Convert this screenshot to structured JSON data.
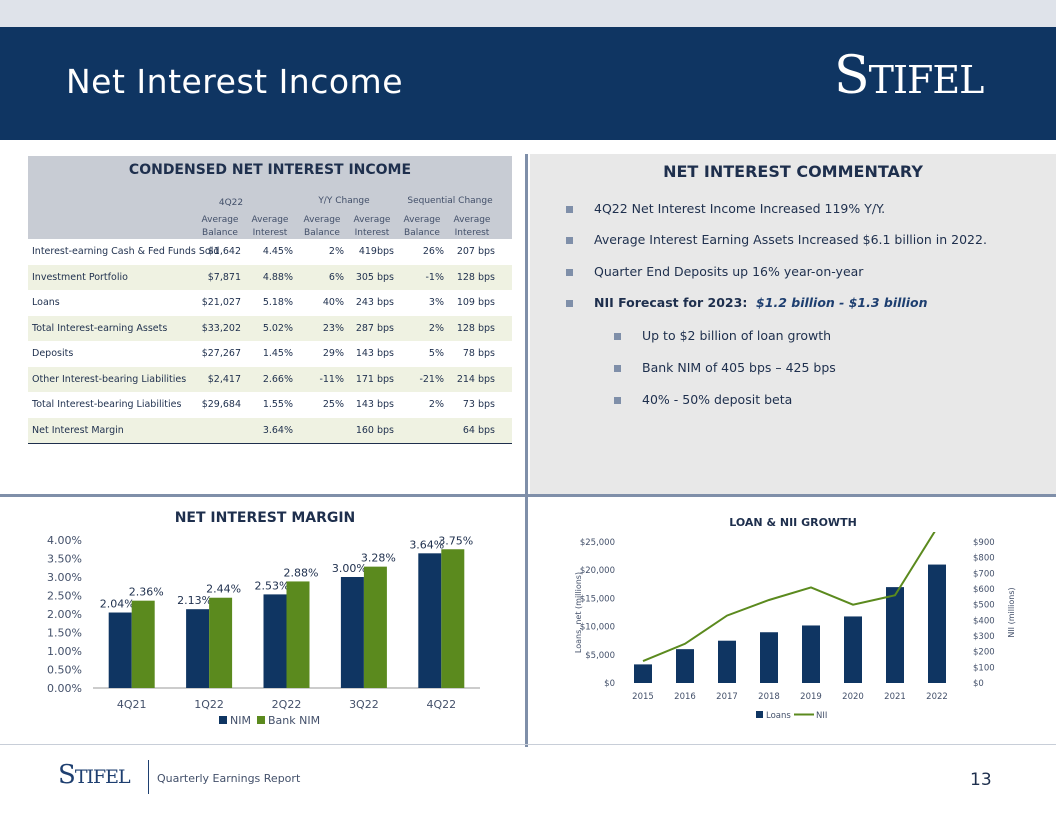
{
  "header": {
    "title": "Net Interest Income",
    "logo_text": "Stifel"
  },
  "table": {
    "title": "CONDENSED NET INTEREST INCOME",
    "groups": [
      "4Q22",
      "Y/Y Change",
      "Sequential Change"
    ],
    "col_headers": [
      "Average Balance",
      "Average Interest",
      "Average Balance",
      "Average Interest",
      "Average Balance",
      "Average Interest"
    ],
    "rows": [
      {
        "label": "Interest-earning Cash & Fed Funds Sold",
        "cells": [
          "$1,642",
          "4.45%",
          "2%",
          "419bps",
          "26%",
          "207 bps"
        ]
      },
      {
        "label": "Investment Portfolio",
        "cells": [
          "$7,871",
          "4.88%",
          "6%",
          "305 bps",
          "-1%",
          "128 bps"
        ]
      },
      {
        "label": "Loans",
        "cells": [
          "$21,027",
          "5.18%",
          "40%",
          "243 bps",
          "3%",
          "109 bps"
        ]
      },
      {
        "label": "Total Interest-earning Assets",
        "cells": [
          "$33,202",
          "5.02%",
          "23%",
          "287 bps",
          "2%",
          "128 bps"
        ]
      },
      {
        "label": "Deposits",
        "cells": [
          "$27,267",
          "1.45%",
          "29%",
          "143 bps",
          "5%",
          "78 bps"
        ]
      },
      {
        "label": "Other Interest-bearing Liabilities",
        "cells": [
          "$2,417",
          "2.66%",
          "-11%",
          "171 bps",
          "-21%",
          "214 bps"
        ]
      },
      {
        "label": "Total Interest-bearing Liabilities",
        "cells": [
          "$29,684",
          "1.55%",
          "25%",
          "143 bps",
          "2%",
          "73 bps"
        ]
      },
      {
        "label": "Net Interest Margin",
        "cells": [
          "",
          "3.64%",
          "",
          "160 bps",
          "",
          "64 bps"
        ]
      }
    ]
  },
  "commentary": {
    "title": "NET INTEREST COMMENTARY",
    "b1": "4Q22 Net Interest Income Increased 119% Y/Y.",
    "b2": "Average Interest Earning Assets Increased $6.1 billion in 2022.",
    "b3": "Quarter End Deposits up 16% year-on-year",
    "b4_prefix": "NII Forecast for 2023:",
    "b4_value": "$1.2 billion - $1.3 billion",
    "s1": "Up to $2 billion of loan growth",
    "s2": "Bank NIM of  405 bps – 425 bps",
    "s3": "40% - 50% deposit beta"
  },
  "chart_data": [
    {
      "type": "bar",
      "title": "NET INTEREST MARGIN",
      "categories": [
        "4Q21",
        "1Q22",
        "2Q22",
        "3Q22",
        "4Q22"
      ],
      "series": [
        {
          "name": "NIM",
          "values": [
            2.04,
            2.13,
            2.53,
            3.0,
            3.64
          ],
          "labels": [
            "2.04%",
            "2.13%",
            "2.53%",
            "3.00%",
            "3.64%"
          ],
          "color": "#0f3562"
        },
        {
          "name": "Bank NIM",
          "values": [
            2.36,
            2.44,
            2.88,
            3.28,
            3.75
          ],
          "labels": [
            "2.36%",
            "2.44%",
            "2.88%",
            "3.28%",
            "3.75%"
          ],
          "color": "#5b8a1e"
        }
      ],
      "yticks": [
        "0.00%",
        "0.50%",
        "1.00%",
        "1.50%",
        "2.00%",
        "2.50%",
        "3.00%",
        "3.50%",
        "4.00%"
      ],
      "ylim": [
        0,
        4.0
      ],
      "legend": "bottom"
    },
    {
      "type": "bar+line",
      "title": "LOAN & NII GROWTH",
      "categories": [
        "2015",
        "2016",
        "2017",
        "2018",
        "2019",
        "2020",
        "2021",
        "2022"
      ],
      "series": [
        {
          "name": "Loans",
          "type": "bar",
          "axis": "left",
          "values": [
            3300,
            6000,
            7500,
            9000,
            10200,
            11800,
            17000,
            21000
          ],
          "color": "#0f3562"
        },
        {
          "name": "NII",
          "type": "line",
          "axis": "right",
          "values": [
            140,
            250,
            430,
            530,
            610,
            500,
            560,
            990
          ],
          "color": "#5b8a1e"
        }
      ],
      "ylabel_left": "Loans, net (millions)",
      "ylabel_right": "NII (millions)",
      "yticks_left": [
        "$0",
        "$5,000",
        "$10,000",
        "$15,000",
        "$20,000",
        "$25,000"
      ],
      "yticks_right": [
        "$0",
        "$100",
        "$200",
        "$300",
        "$400",
        "$500",
        "$600",
        "$700",
        "$800",
        "$900"
      ],
      "ylim_left": [
        0,
        25000
      ],
      "ylim_right": [
        0,
        900
      ],
      "legend": "bottom"
    }
  ],
  "footer": {
    "logo_text": "Stifel",
    "report": "Quarterly Earnings Report",
    "page": "13"
  }
}
